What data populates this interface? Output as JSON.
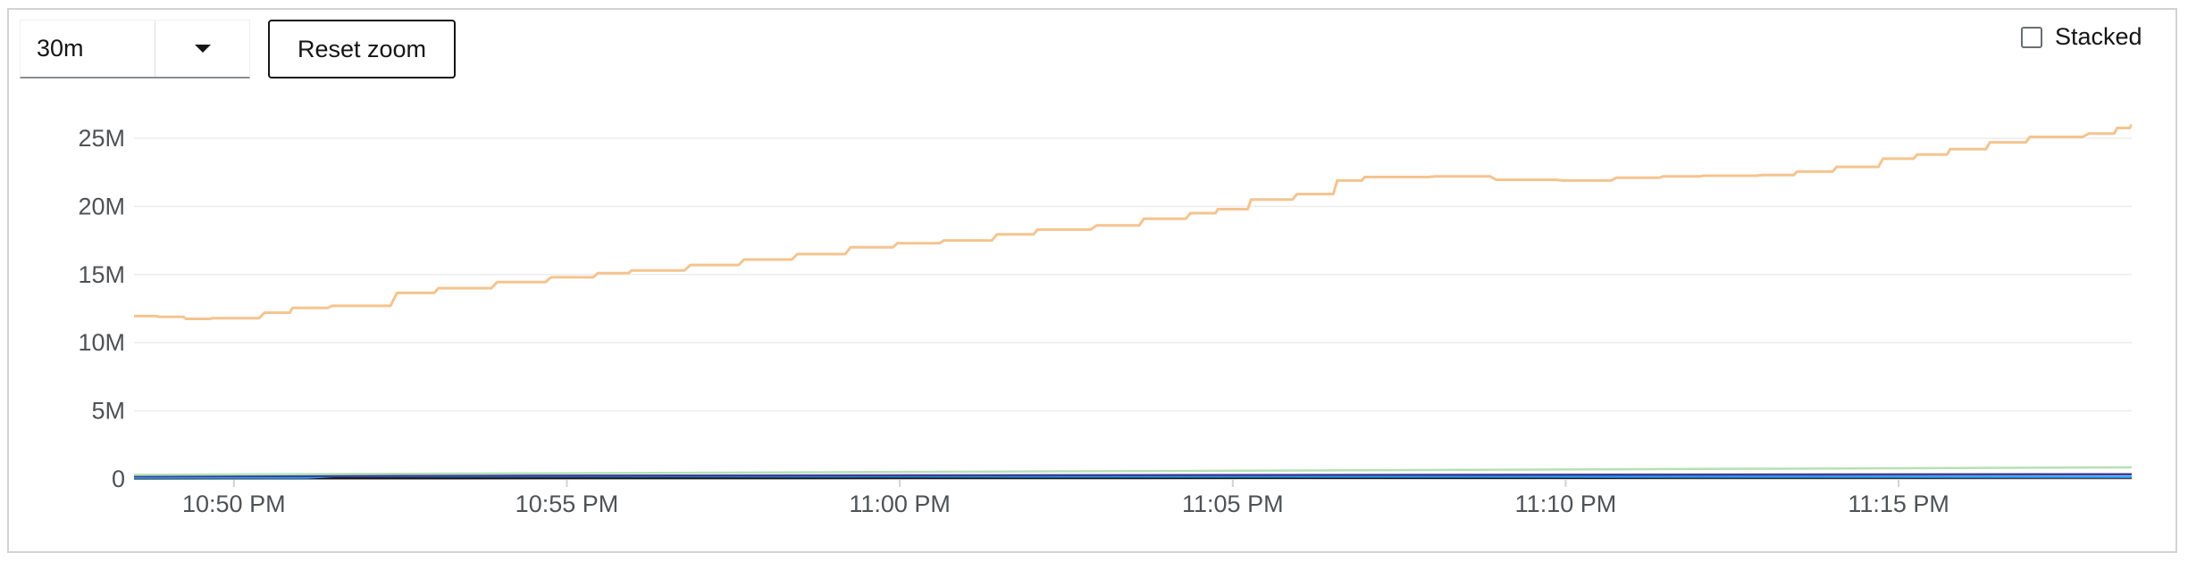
{
  "controls": {
    "time_range": "30m",
    "reset_zoom_label": "Reset zoom",
    "stacked_label": "Stacked",
    "stacked_checked": false
  },
  "colors": {
    "series_1": "#f4c48f",
    "series_2": "#b6e0b4",
    "series_3": "#2b9af3",
    "series_4": "#3c3d99",
    "series_5": "#151515",
    "grid": "#ececec"
  },
  "chart_data": {
    "type": "line",
    "title": "",
    "xlabel": "",
    "ylabel": "",
    "ylim": [
      0,
      25000000
    ],
    "xlim": [
      "10:48:30 PM",
      "11:18:30 PM"
    ],
    "y_tick_values": [
      0,
      5000000,
      10000000,
      15000000,
      20000000,
      25000000
    ],
    "y_tick_labels": [
      "0",
      "5M",
      "10M",
      "15M",
      "20M",
      "25M"
    ],
    "x_ticks": [
      {
        "time": "10:50 PM",
        "minute": 1.5
      },
      {
        "time": "10:55 PM",
        "minute": 6.5
      },
      {
        "time": "11:00 PM",
        "minute": 11.5
      },
      {
        "time": "11:05 PM",
        "minute": 16.5
      },
      {
        "time": "11:10 PM",
        "minute": 21.5
      },
      {
        "time": "11:15 PM",
        "minute": 26.5
      }
    ],
    "grid": true,
    "legend": "none",
    "series": [
      {
        "color": "#f4c48f",
        "x_minutes": [
          0.0,
          0.4,
          0.8,
          1.2,
          2.0,
          2.4,
          3.0,
          4.0,
          4.6,
          5.5,
          6.3,
          7.0,
          7.5,
          8.4,
          9.2,
          10.0,
          10.8,
          11.5,
          12.2,
          13.0,
          13.6,
          14.5,
          15.2,
          15.9,
          16.3,
          16.8,
          17.5,
          18.1,
          18.5,
          19.6,
          20.5,
          21.5,
          22.3,
          23.0,
          23.6,
          24.5,
          25.0,
          25.6,
          26.3,
          26.8,
          27.3,
          27.9,
          28.5,
          29.4,
          29.8,
          30.0
        ],
        "y": [
          11950000,
          11900000,
          11750000,
          11800000,
          12200000,
          12550000,
          12700000,
          13650000,
          14000000,
          14450000,
          14800000,
          15100000,
          15300000,
          15700000,
          16100000,
          16500000,
          17000000,
          17300000,
          17500000,
          17950000,
          18300000,
          18600000,
          19100000,
          19500000,
          19800000,
          20500000,
          20900000,
          21900000,
          22150000,
          22200000,
          21950000,
          21900000,
          22100000,
          22200000,
          22250000,
          22300000,
          22550000,
          22900000,
          23500000,
          23800000,
          24200000,
          24700000,
          25100000,
          25350000,
          25750000,
          25950000
        ]
      },
      {
        "color": "#b6e0b4",
        "x_minutes": [
          0,
          30
        ],
        "y": [
          300000,
          850000
        ]
      },
      {
        "color": "#3c3d99",
        "x_minutes": [
          0,
          30
        ],
        "y": [
          200000,
          350000
        ]
      },
      {
        "color": "#2b9af3",
        "x_minutes": [
          0,
          2.6,
          3.0,
          30
        ],
        "y": [
          100000,
          100000,
          200000,
          150000
        ]
      },
      {
        "color": "#151515",
        "x_minutes": [
          0,
          30
        ],
        "y": [
          50000,
          100000
        ]
      }
    ]
  }
}
